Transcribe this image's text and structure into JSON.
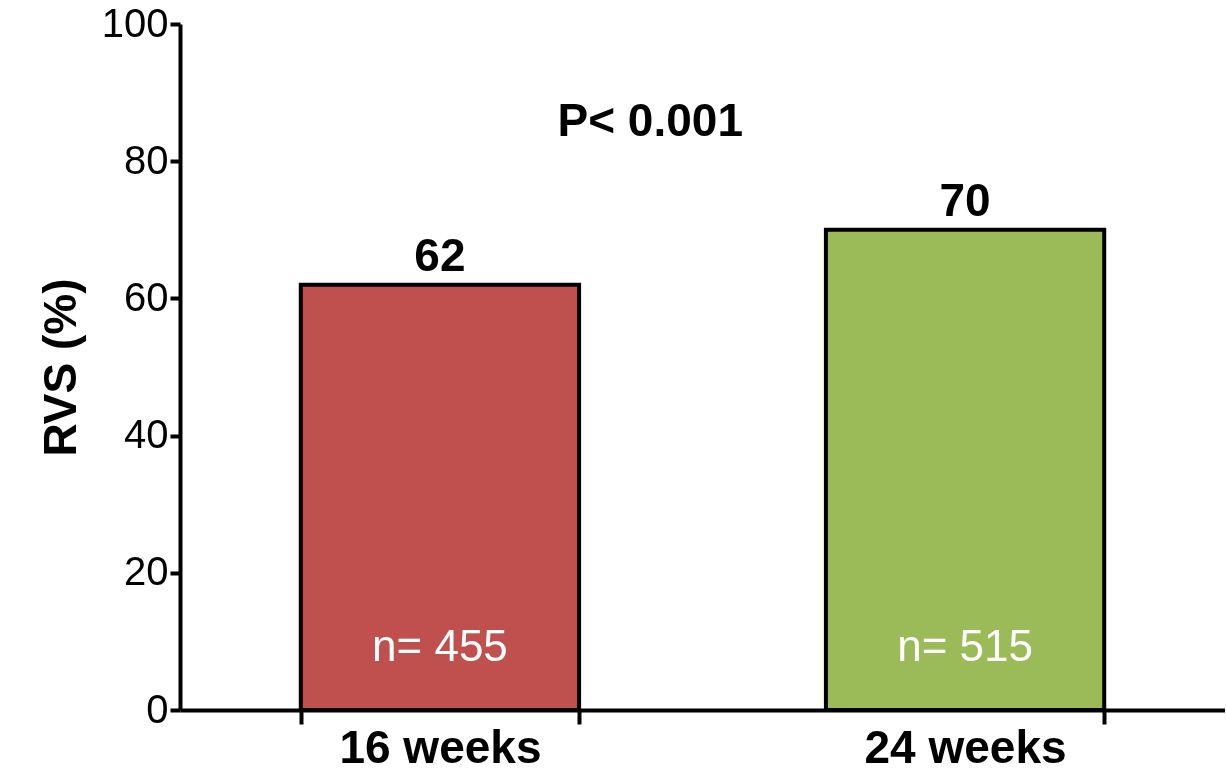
{
  "chart_data": {
    "type": "bar",
    "ylabel": "RVS (%)",
    "categories": [
      "16 weeks",
      "24 weeks"
    ],
    "values": [
      62,
      70
    ],
    "colors": [
      "#c0504d",
      "#9bbb59"
    ],
    "ylim": [
      0,
      100
    ],
    "yticks": [
      0,
      20,
      40,
      60,
      80,
      100
    ],
    "data_labels": true,
    "annotations": [
      "P< 0.001",
      "n= 455",
      "n= 515"
    ]
  }
}
